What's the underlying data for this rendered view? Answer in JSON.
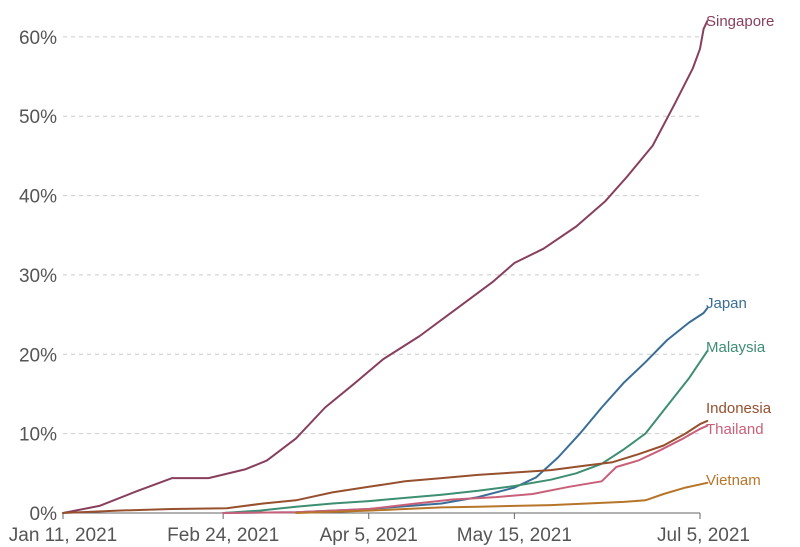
{
  "chart_data": {
    "type": "line",
    "title": "",
    "xlabel": "",
    "ylabel": "",
    "x_ticks": [
      {
        "date": "2021-01-11",
        "label": "Jan 11, 2021"
      },
      {
        "date": "2021-02-24",
        "label": "Feb 24, 2021"
      },
      {
        "date": "2021-04-05",
        "label": "Apr 5, 2021"
      },
      {
        "date": "2021-05-15",
        "label": "May 15, 2021"
      },
      {
        "date": "2021-07-05",
        "label": "Jul 5, 2021"
      }
    ],
    "y_ticks": [
      {
        "value": 0,
        "label": "0%"
      },
      {
        "value": 10,
        "label": "10%"
      },
      {
        "value": 20,
        "label": "20%"
      },
      {
        "value": 30,
        "label": "30%"
      },
      {
        "value": 40,
        "label": "40%"
      },
      {
        "value": 50,
        "label": "50%"
      },
      {
        "value": 60,
        "label": "60%"
      }
    ],
    "xlim": [
      "2021-01-11",
      "2021-07-05"
    ],
    "ylim": [
      0,
      62
    ],
    "grid": true,
    "series": [
      {
        "name": "Singapore",
        "color": "#883f5e",
        "points": [
          [
            "2021-01-11",
            0
          ],
          [
            "2021-01-21",
            0.9
          ],
          [
            "2021-01-31",
            2.7
          ],
          [
            "2021-02-10",
            4.4
          ],
          [
            "2021-02-20",
            4.4
          ],
          [
            "2021-03-02",
            5.5
          ],
          [
            "2021-03-08",
            6.6
          ],
          [
            "2021-03-16",
            9.4
          ],
          [
            "2021-03-24",
            13.3
          ],
          [
            "2021-04-01",
            16.3
          ],
          [
            "2021-04-09",
            19.4
          ],
          [
            "2021-04-19",
            22.3
          ],
          [
            "2021-04-29",
            25.7
          ],
          [
            "2021-05-09",
            29.1
          ],
          [
            "2021-05-15",
            31.5
          ],
          [
            "2021-05-23",
            33.3
          ],
          [
            "2021-06-01",
            36.1
          ],
          [
            "2021-06-09",
            39.3
          ],
          [
            "2021-06-15",
            42.4
          ],
          [
            "2021-06-22",
            46.3
          ],
          [
            "2021-06-28",
            51.5
          ],
          [
            "2021-07-03",
            56.0
          ],
          [
            "2021-07-05",
            58.5
          ],
          [
            "2021-07-06",
            61.0
          ],
          [
            "2021-07-07",
            62.0
          ]
        ]
      },
      {
        "name": "Japan",
        "color": "#3a6e96",
        "points": [
          [
            "2021-02-24",
            0
          ],
          [
            "2021-03-16",
            0.1
          ],
          [
            "2021-04-05",
            0.5
          ],
          [
            "2021-04-25",
            1.2
          ],
          [
            "2021-05-05",
            2.0
          ],
          [
            "2021-05-15",
            3.2
          ],
          [
            "2021-05-21",
            4.5
          ],
          [
            "2021-05-27",
            7.0
          ],
          [
            "2021-06-02",
            10.0
          ],
          [
            "2021-06-08",
            13.3
          ],
          [
            "2021-06-14",
            16.4
          ],
          [
            "2021-06-20",
            19.0
          ],
          [
            "2021-06-26",
            21.8
          ],
          [
            "2021-07-02",
            24.0
          ],
          [
            "2021-07-06",
            25.2
          ],
          [
            "2021-07-07",
            25.8
          ]
        ]
      },
      {
        "name": "Malaysia",
        "color": "#3e8e72",
        "points": [
          [
            "2021-02-24",
            0
          ],
          [
            "2021-03-06",
            0.3
          ],
          [
            "2021-03-16",
            0.8
          ],
          [
            "2021-03-26",
            1.2
          ],
          [
            "2021-04-05",
            1.5
          ],
          [
            "2021-04-15",
            1.9
          ],
          [
            "2021-04-25",
            2.3
          ],
          [
            "2021-05-05",
            2.8
          ],
          [
            "2021-05-15",
            3.4
          ],
          [
            "2021-05-25",
            4.2
          ],
          [
            "2021-06-01",
            5.0
          ],
          [
            "2021-06-08",
            6.2
          ],
          [
            "2021-06-14",
            8.0
          ],
          [
            "2021-06-20",
            10.0
          ],
          [
            "2021-06-26",
            13.5
          ],
          [
            "2021-07-02",
            17.0
          ],
          [
            "2021-07-07",
            20.4
          ]
        ]
      },
      {
        "name": "Indonesia",
        "color": "#96502e",
        "points": [
          [
            "2021-01-11",
            0
          ],
          [
            "2021-01-26",
            0.3
          ],
          [
            "2021-02-10",
            0.5
          ],
          [
            "2021-02-25",
            0.6
          ],
          [
            "2021-03-07",
            1.2
          ],
          [
            "2021-03-16",
            1.6
          ],
          [
            "2021-03-26",
            2.6
          ],
          [
            "2021-04-05",
            3.3
          ],
          [
            "2021-04-15",
            4.0
          ],
          [
            "2021-04-25",
            4.4
          ],
          [
            "2021-05-05",
            4.8
          ],
          [
            "2021-05-15",
            5.1
          ],
          [
            "2021-05-25",
            5.4
          ],
          [
            "2021-06-04",
            6.0
          ],
          [
            "2021-06-11",
            6.4
          ],
          [
            "2021-06-18",
            7.4
          ],
          [
            "2021-06-25",
            8.5
          ],
          [
            "2021-07-01",
            10.0
          ],
          [
            "2021-07-05",
            11.2
          ],
          [
            "2021-07-07",
            11.6
          ]
        ]
      },
      {
        "name": "Thailand",
        "color": "#c9607a",
        "points": [
          [
            "2021-02-24",
            0
          ],
          [
            "2021-03-16",
            0.1
          ],
          [
            "2021-04-05",
            0.5
          ],
          [
            "2021-04-18",
            1.2
          ],
          [
            "2021-04-28",
            1.7
          ],
          [
            "2021-05-10",
            2.0
          ],
          [
            "2021-05-20",
            2.4
          ],
          [
            "2021-05-30",
            3.3
          ],
          [
            "2021-06-08",
            4.0
          ],
          [
            "2021-06-12",
            5.8
          ],
          [
            "2021-06-18",
            6.6
          ],
          [
            "2021-06-24",
            7.9
          ],
          [
            "2021-06-30",
            9.3
          ],
          [
            "2021-07-05",
            10.6
          ],
          [
            "2021-07-07",
            11.0
          ]
        ]
      },
      {
        "name": "Vietnam",
        "color": "#b7752a",
        "points": [
          [
            "2021-03-16",
            0
          ],
          [
            "2021-04-05",
            0.3
          ],
          [
            "2021-04-15",
            0.5
          ],
          [
            "2021-04-25",
            0.7
          ],
          [
            "2021-05-05",
            0.8
          ],
          [
            "2021-05-15",
            0.9
          ],
          [
            "2021-05-25",
            1.0
          ],
          [
            "2021-06-04",
            1.2
          ],
          [
            "2021-06-14",
            1.4
          ],
          [
            "2021-06-20",
            1.6
          ],
          [
            "2021-06-25",
            2.4
          ],
          [
            "2021-07-01",
            3.2
          ],
          [
            "2021-07-07",
            3.8
          ]
        ]
      }
    ]
  }
}
